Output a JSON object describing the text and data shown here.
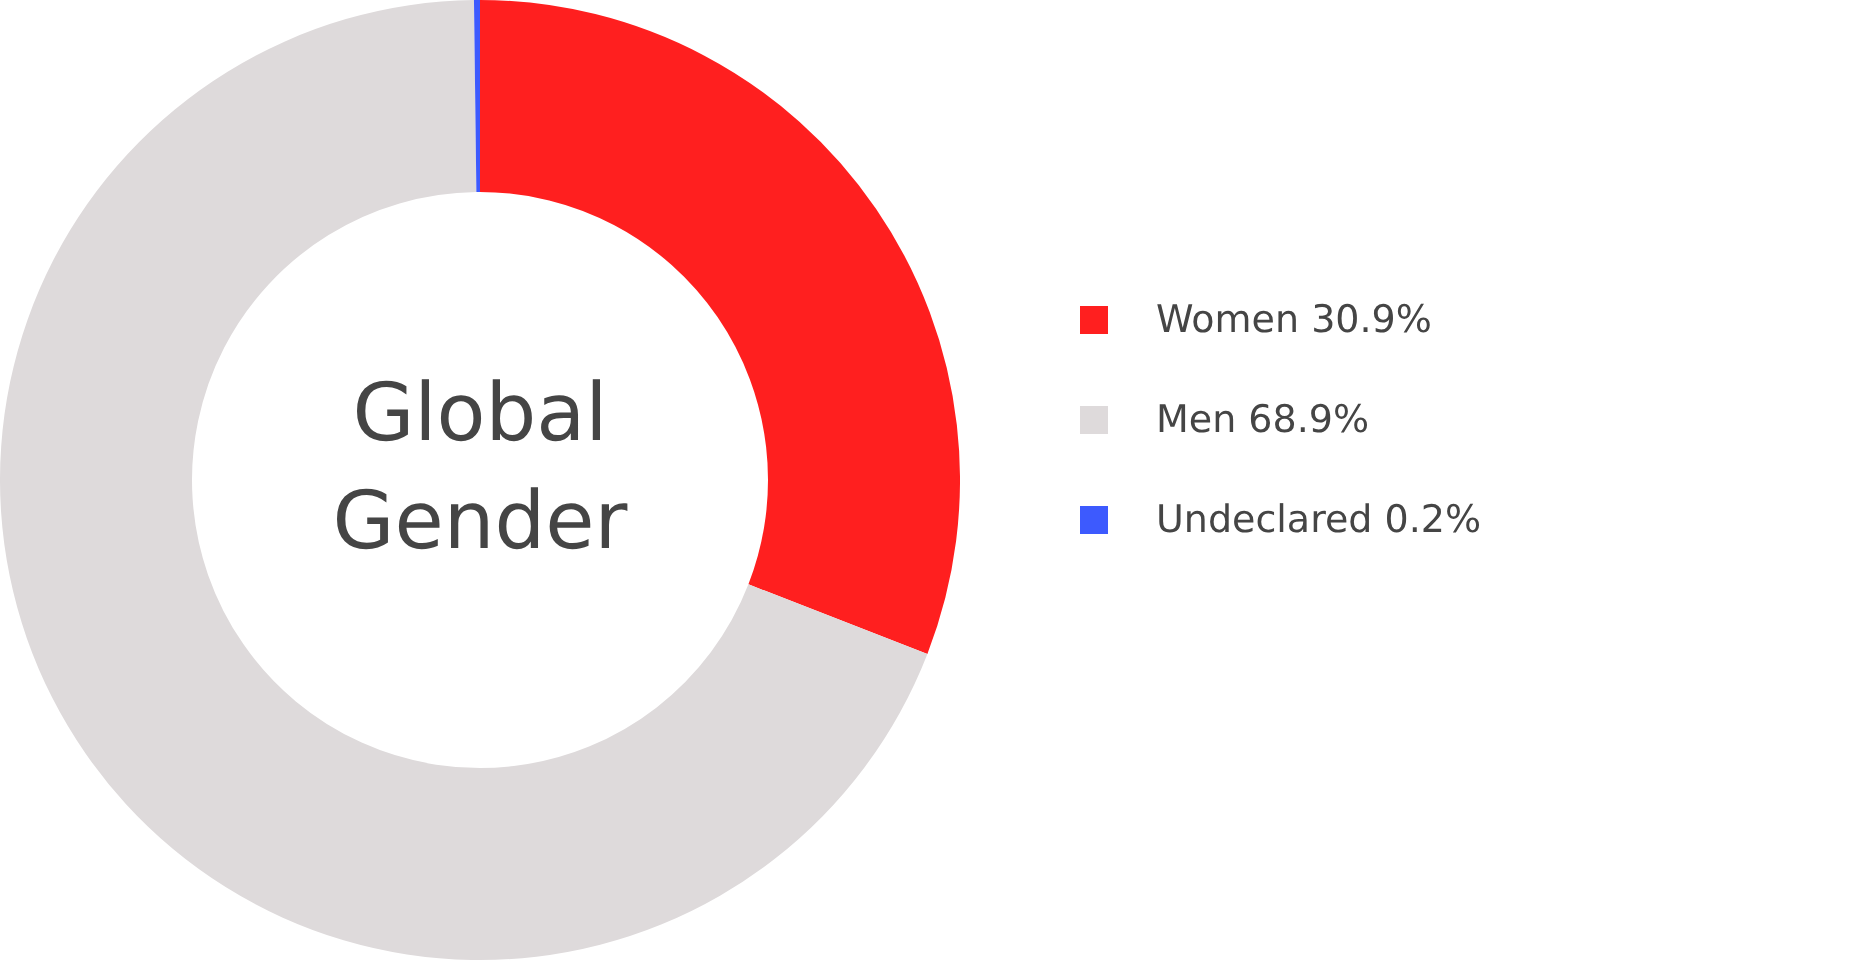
{
  "chart_data": {
    "type": "donut",
    "title": "Global Gender",
    "categories": [
      "Women 30.9%",
      "Men 68.9%",
      "Undeclared 0.2%"
    ],
    "values": [
      30.9,
      68.9,
      0.2
    ],
    "colors": [
      "#ff1f1f",
      "#dedadb",
      "#3d5afe"
    ],
    "legend": "right"
  }
}
